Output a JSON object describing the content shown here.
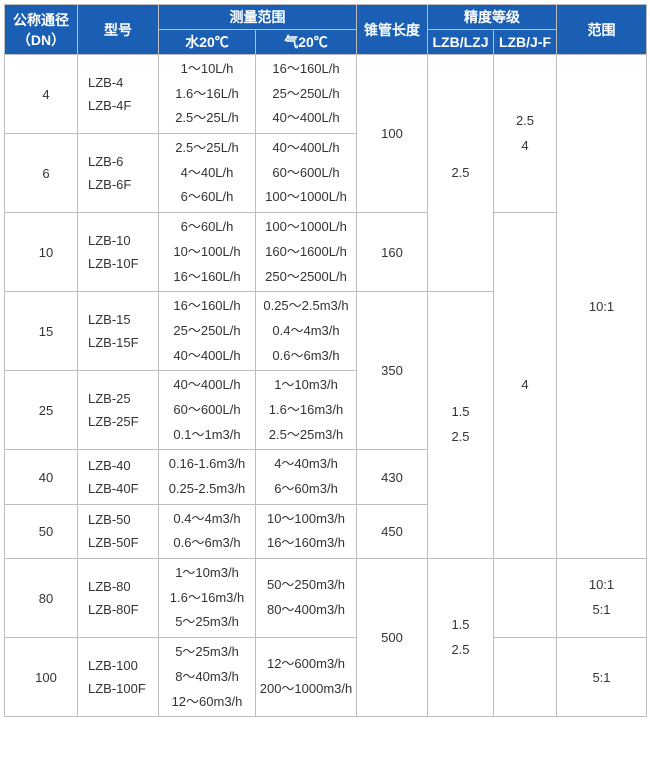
{
  "headers": {
    "dn": "公称通径（DN）",
    "model": "型号",
    "range_group": "测量范围",
    "water": "水20℃",
    "air": "气20℃",
    "tube_len": "锥管长度",
    "precision_group": "精度等级",
    "p1": "LZB/LZJ",
    "p2": "LZB/J-F",
    "range": "范围"
  },
  "rows": [
    {
      "dn": "4",
      "model": "LZB-4\nLZB-4F",
      "water": "1～10L/h\n1.6～16L/h\n2.5～25L/h",
      "air": "16～160L/h\n25～250L/h\n40～400L/h"
    },
    {
      "dn": "6",
      "model": "LZB-6\nLZB-6F",
      "water": "2.5～25L/h\n4～40L/h\n6～60L/h",
      "air": "40～400L/h\n60～600L/h\n100～1000L/h"
    },
    {
      "dn": "10",
      "model": "LZB-10\nLZB-10F",
      "water": "6～60L/h\n10～100L/h\n16～160L/h",
      "air": "100～1000L/h\n160～1600L/h\n250～2500L/h"
    },
    {
      "dn": "15",
      "model": "LZB-15\nLZB-15F",
      "water": "16～160L/h\n25～250L/h\n40～400L/h",
      "air": "0.25～2.5m3/h\n0.4～4m3/h\n0.6～6m3/h"
    },
    {
      "dn": "25",
      "model": "LZB-25\nLZB-25F",
      "water": "40～400L/h\n60～600L/h\n0.1～1m3/h",
      "air": "1～10m3/h\n1.6～16m3/h\n2.5～25m3/h"
    },
    {
      "dn": "40",
      "model": "LZB-40\nLZB-40F",
      "water": "0.16-1.6m3/h\n0.25-2.5m3/h",
      "air": "4～40m3/h\n6～60m3/h"
    },
    {
      "dn": "50",
      "model": "LZB-50\nLZB-50F",
      "water": "0.4～4m3/h\n0.6～6m3/h",
      "air": "10～100m3/h\n16～160m3/h"
    },
    {
      "dn": "80",
      "model": "LZB-80\nLZB-80F",
      "water": "1～10m3/h\n1.6～16m3/h\n5～25m3/h",
      "air": "50～250m3/h\n80～400m3/h"
    },
    {
      "dn": "100",
      "model": "LZB-100\nLZB-100F",
      "water": "5～25m3/h\n8～40m3/h\n12～60m3/h",
      "air": "12～600m3/h\n200～1000m3/h"
    }
  ],
  "tube_len": {
    "l4_6": "100",
    "l10": "160",
    "l15_25": "350",
    "l40": "430",
    "l50": "450",
    "l80_100": "500"
  },
  "precision": {
    "p1_4_10": "2.5",
    "p1_15_50": "1.5\n2.5",
    "p1_80_100": "1.5\n2.5",
    "p2_4_6": "2.5\n4",
    "p2_15_50": "4"
  },
  "range_vals": {
    "r_4_50": "10:1",
    "r_80": "10:1\n5:1",
    "r_100": "5:1"
  },
  "colors": {
    "header_bg": "#1a5fb4",
    "header_fg": "#ffffff",
    "border": "#bdbdbd"
  }
}
